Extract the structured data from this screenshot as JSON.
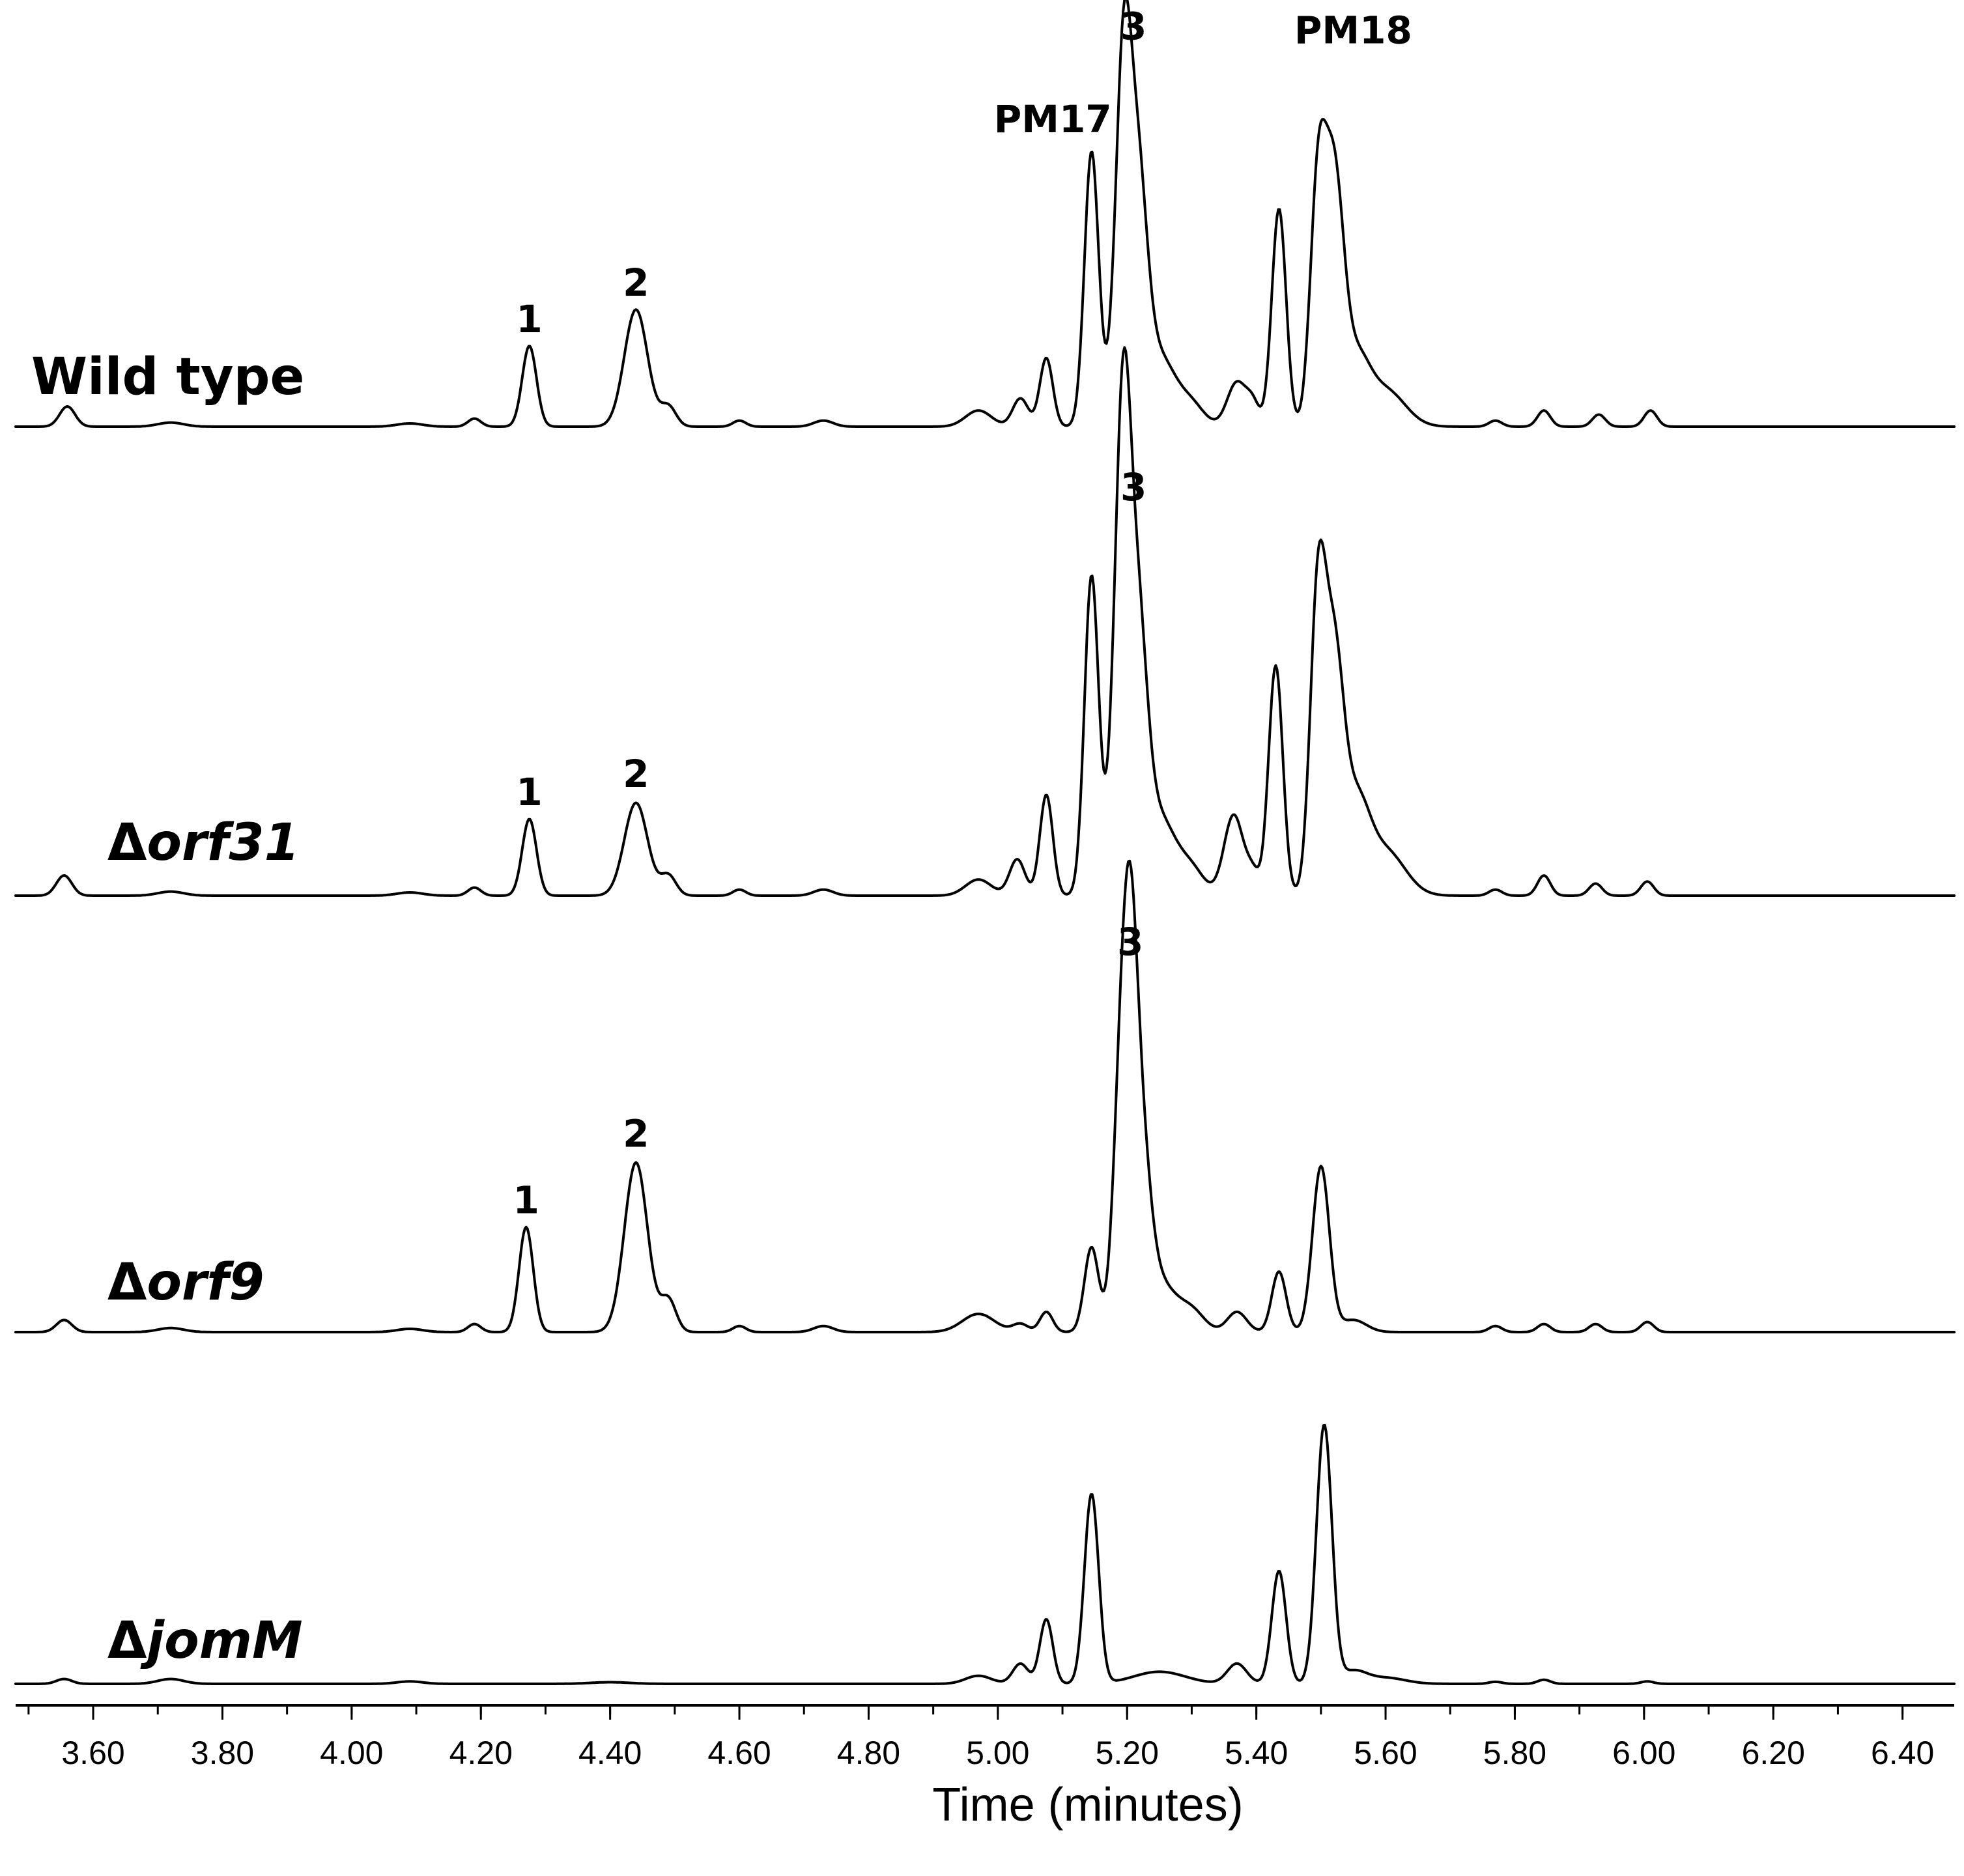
{
  "chart_data": {
    "type": "line",
    "xlabel": "Time (minutes)",
    "ylabel": "",
    "xlim": [
      3.48,
      6.48
    ],
    "x_ticks": [
      "3.60",
      "3.80",
      "4.00",
      "4.20",
      "4.40",
      "4.60",
      "4.80",
      "5.00",
      "5.20",
      "5.40",
      "5.60",
      "5.80",
      "6.00",
      "6.20",
      "6.40"
    ],
    "x_tick_values": [
      3.6,
      3.8,
      4.0,
      4.2,
      4.4,
      4.6,
      4.8,
      5.0,
      5.2,
      5.4,
      5.6,
      5.8,
      6.0,
      6.2,
      6.4
    ],
    "grid": false,
    "series": [
      {
        "name": "Wild type",
        "prefix": "",
        "italic_part": "",
        "label_italic": false,
        "peaks": [
          [
            3.56,
            0.05,
            0.012
          ],
          [
            3.72,
            0.01,
            0.02
          ],
          [
            4.09,
            0.008,
            0.02
          ],
          [
            4.19,
            0.02,
            0.01
          ],
          [
            4.275,
            0.2,
            0.011
          ],
          [
            4.44,
            0.29,
            0.018
          ],
          [
            4.49,
            0.05,
            0.012
          ],
          [
            4.6,
            0.015,
            0.01
          ],
          [
            4.73,
            0.015,
            0.015
          ],
          [
            4.97,
            0.04,
            0.02
          ],
          [
            5.035,
            0.07,
            0.012
          ],
          [
            5.075,
            0.17,
            0.01
          ],
          [
            5.145,
            0.68,
            0.011
          ],
          [
            5.185,
            0.22,
            0.013
          ],
          [
            5.195,
            0.62,
            0.011
          ],
          [
            5.215,
            0.6,
            0.015
          ],
          [
            5.25,
            0.17,
            0.025
          ],
          [
            5.3,
            0.05,
            0.02
          ],
          [
            5.37,
            0.11,
            0.015
          ],
          [
            5.395,
            0.05,
            0.01
          ],
          [
            5.435,
            0.54,
            0.011
          ],
          [
            5.495,
            0.55,
            0.012
          ],
          [
            5.52,
            0.6,
            0.015
          ],
          [
            5.555,
            0.15,
            0.02
          ],
          [
            5.6,
            0.09,
            0.03
          ],
          [
            5.77,
            0.015,
            0.01
          ],
          [
            5.845,
            0.04,
            0.01
          ],
          [
            5.93,
            0.03,
            0.01
          ],
          [
            6.01,
            0.04,
            0.01
          ]
        ],
        "annotations": [
          {
            "label": "1",
            "x": 4.275,
            "y": 0.205
          },
          {
            "label": "2",
            "x": 4.44,
            "y": 0.295
          },
          {
            "label": "PM17",
            "x": 5.085,
            "y": 0.7
          },
          {
            "label": "3",
            "x": 5.21,
            "y": 0.93
          },
          {
            "label": "PM18",
            "x": 5.55,
            "y": 0.92
          }
        ]
      },
      {
        "name": "Δorf31",
        "prefix": "Δ",
        "italic_part": "orf31",
        "label_italic": true,
        "peaks": [
          [
            3.555,
            0.05,
            0.012
          ],
          [
            3.72,
            0.01,
            0.02
          ],
          [
            4.09,
            0.008,
            0.02
          ],
          [
            4.19,
            0.02,
            0.01
          ],
          [
            4.275,
            0.19,
            0.011
          ],
          [
            4.44,
            0.23,
            0.018
          ],
          [
            4.49,
            0.05,
            0.012
          ],
          [
            4.6,
            0.015,
            0.01
          ],
          [
            4.73,
            0.015,
            0.015
          ],
          [
            4.97,
            0.04,
            0.02
          ],
          [
            5.03,
            0.09,
            0.012
          ],
          [
            5.075,
            0.25,
            0.01
          ],
          [
            5.145,
            0.79,
            0.011
          ],
          [
            5.185,
            0.43,
            0.013
          ],
          [
            5.195,
            0.75,
            0.011
          ],
          [
            5.215,
            0.65,
            0.015
          ],
          [
            5.25,
            0.19,
            0.025
          ],
          [
            5.3,
            0.06,
            0.02
          ],
          [
            5.365,
            0.2,
            0.015
          ],
          [
            5.395,
            0.05,
            0.01
          ],
          [
            5.43,
            0.57,
            0.011
          ],
          [
            5.495,
            0.7,
            0.012
          ],
          [
            5.52,
            0.57,
            0.015
          ],
          [
            5.555,
            0.21,
            0.02
          ],
          [
            5.6,
            0.11,
            0.03
          ],
          [
            5.77,
            0.015,
            0.01
          ],
          [
            5.845,
            0.05,
            0.01
          ],
          [
            5.925,
            0.03,
            0.01
          ],
          [
            6.005,
            0.035,
            0.01
          ]
        ],
        "annotations": [
          {
            "label": "1",
            "x": 4.275,
            "y": 0.195
          },
          {
            "label": "2",
            "x": 4.44,
            "y": 0.24
          },
          {
            "label": "3",
            "x": 5.21,
            "y": 0.95
          }
        ]
      },
      {
        "name": "Δorf9",
        "prefix": "Δ",
        "italic_part": "orf9",
        "label_italic": true,
        "peaks": [
          [
            3.555,
            0.03,
            0.012
          ],
          [
            3.72,
            0.01,
            0.02
          ],
          [
            4.09,
            0.008,
            0.02
          ],
          [
            4.19,
            0.02,
            0.01
          ],
          [
            4.27,
            0.26,
            0.011
          ],
          [
            4.44,
            0.42,
            0.018
          ],
          [
            4.49,
            0.08,
            0.012
          ],
          [
            4.6,
            0.015,
            0.01
          ],
          [
            4.73,
            0.015,
            0.015
          ],
          [
            4.97,
            0.045,
            0.025
          ],
          [
            5.035,
            0.02,
            0.012
          ],
          [
            5.075,
            0.05,
            0.01
          ],
          [
            5.145,
            0.21,
            0.011
          ],
          [
            5.19,
            0.56,
            0.012
          ],
          [
            5.205,
            0.62,
            0.011
          ],
          [
            5.22,
            0.43,
            0.015
          ],
          [
            5.25,
            0.12,
            0.025
          ],
          [
            5.3,
            0.05,
            0.02
          ],
          [
            5.37,
            0.05,
            0.015
          ],
          [
            5.435,
            0.15,
            0.011
          ],
          [
            5.5,
            0.41,
            0.013
          ],
          [
            5.55,
            0.03,
            0.02
          ],
          [
            5.77,
            0.015,
            0.01
          ],
          [
            5.845,
            0.02,
            0.01
          ],
          [
            5.925,
            0.02,
            0.01
          ],
          [
            6.005,
            0.025,
            0.01
          ]
        ],
        "annotations": [
          {
            "label": "1",
            "x": 4.27,
            "y": 0.265
          },
          {
            "label": "2",
            "x": 4.44,
            "y": 0.43
          },
          {
            "label": "3",
            "x": 5.205,
            "y": 0.905
          }
        ]
      },
      {
        "name": "ΔjomM",
        "prefix": "Δ",
        "italic_part": "jomM",
        "label_italic": true,
        "peaks": [
          [
            3.555,
            0.012,
            0.012
          ],
          [
            3.72,
            0.012,
            0.02
          ],
          [
            4.09,
            0.006,
            0.02
          ],
          [
            4.4,
            0.004,
            0.03
          ],
          [
            4.97,
            0.02,
            0.02
          ],
          [
            5.035,
            0.05,
            0.012
          ],
          [
            5.075,
            0.16,
            0.01
          ],
          [
            5.145,
            0.47,
            0.011
          ],
          [
            5.25,
            0.03,
            0.04
          ],
          [
            5.37,
            0.05,
            0.015
          ],
          [
            5.435,
            0.28,
            0.011
          ],
          [
            5.505,
            0.64,
            0.012
          ],
          [
            5.55,
            0.03,
            0.02
          ],
          [
            5.6,
            0.015,
            0.03
          ],
          [
            5.77,
            0.005,
            0.01
          ],
          [
            5.845,
            0.01,
            0.01
          ],
          [
            6.005,
            0.006,
            0.01
          ]
        ],
        "annotations": []
      }
    ]
  }
}
